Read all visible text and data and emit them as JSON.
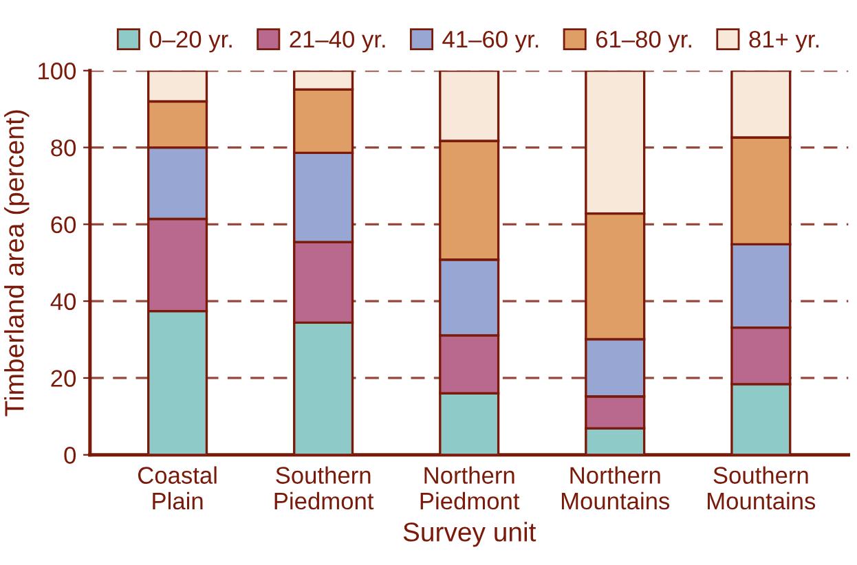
{
  "chart_data": {
    "type": "bar",
    "stacked": true,
    "xlabel": "Survey unit",
    "ylabel": "Timberland area (percent)",
    "categories": [
      "Coastal\nPlain",
      "Southern\nPiedmont",
      "Northern\nPiedmont",
      "Northern\nMountains",
      "Southern\nMountains"
    ],
    "series": [
      {
        "name": "0–20 yr.",
        "color": "#8ecac8",
        "values": [
          37.4,
          34.4,
          16,
          6.9,
          18.4
        ]
      },
      {
        "name": "21–40 yr.",
        "color": "#b9688e",
        "values": [
          24,
          21,
          15.1,
          8.3,
          14.7
        ]
      },
      {
        "name": "41–60 yr.",
        "color": "#97a6d3",
        "values": [
          18.6,
          23.2,
          19.7,
          14.9,
          21.7
        ]
      },
      {
        "name": "61–80 yr.",
        "color": "#e09e67",
        "values": [
          12,
          16.5,
          30.9,
          32.7,
          27.8
        ]
      },
      {
        "name": "81+ yr.",
        "color": "#f8e8da",
        "values": [
          8,
          4.9,
          18.3,
          37.2,
          17.4
        ]
      }
    ],
    "ylim": [
      0,
      100
    ],
    "yticks": [
      0,
      20,
      40,
      60,
      80,
      100
    ],
    "grid": "y",
    "legend": "top"
  }
}
